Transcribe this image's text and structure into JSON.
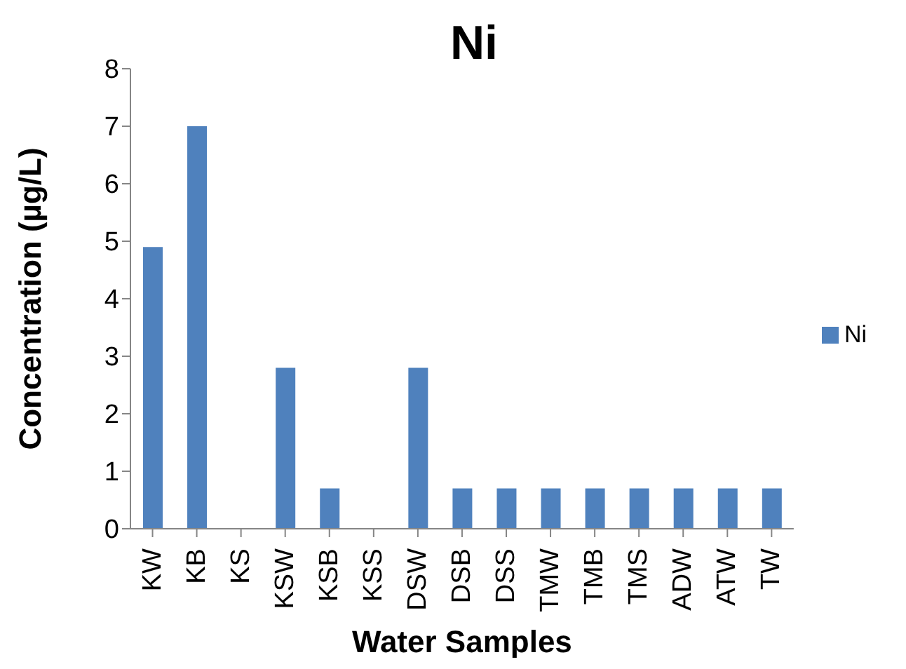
{
  "chart_data": {
    "type": "bar",
    "title": "Ni",
    "xlabel": "Water Samples",
    "ylabel": "Concentration (µg/L)",
    "categories": [
      "KW",
      "KB",
      "KS",
      "KSW",
      "KSB",
      "KSS",
      "DSW",
      "DSB",
      "DSS",
      "TMW",
      "TMB",
      "TMS",
      "ADW",
      "ATW",
      "TW"
    ],
    "series": [
      {
        "name": "Ni",
        "color": "#4f81bd",
        "values": [
          4.9,
          7.0,
          0,
          2.8,
          0.7,
          0,
          2.8,
          0.7,
          0.7,
          0.7,
          0.7,
          0.7,
          0.7,
          0.7,
          0.7
        ]
      }
    ],
    "ylim": [
      0,
      8
    ],
    "yticks": [
      0,
      1,
      2,
      3,
      4,
      5,
      6,
      7,
      8
    ],
    "grid": false,
    "legend": "right"
  }
}
